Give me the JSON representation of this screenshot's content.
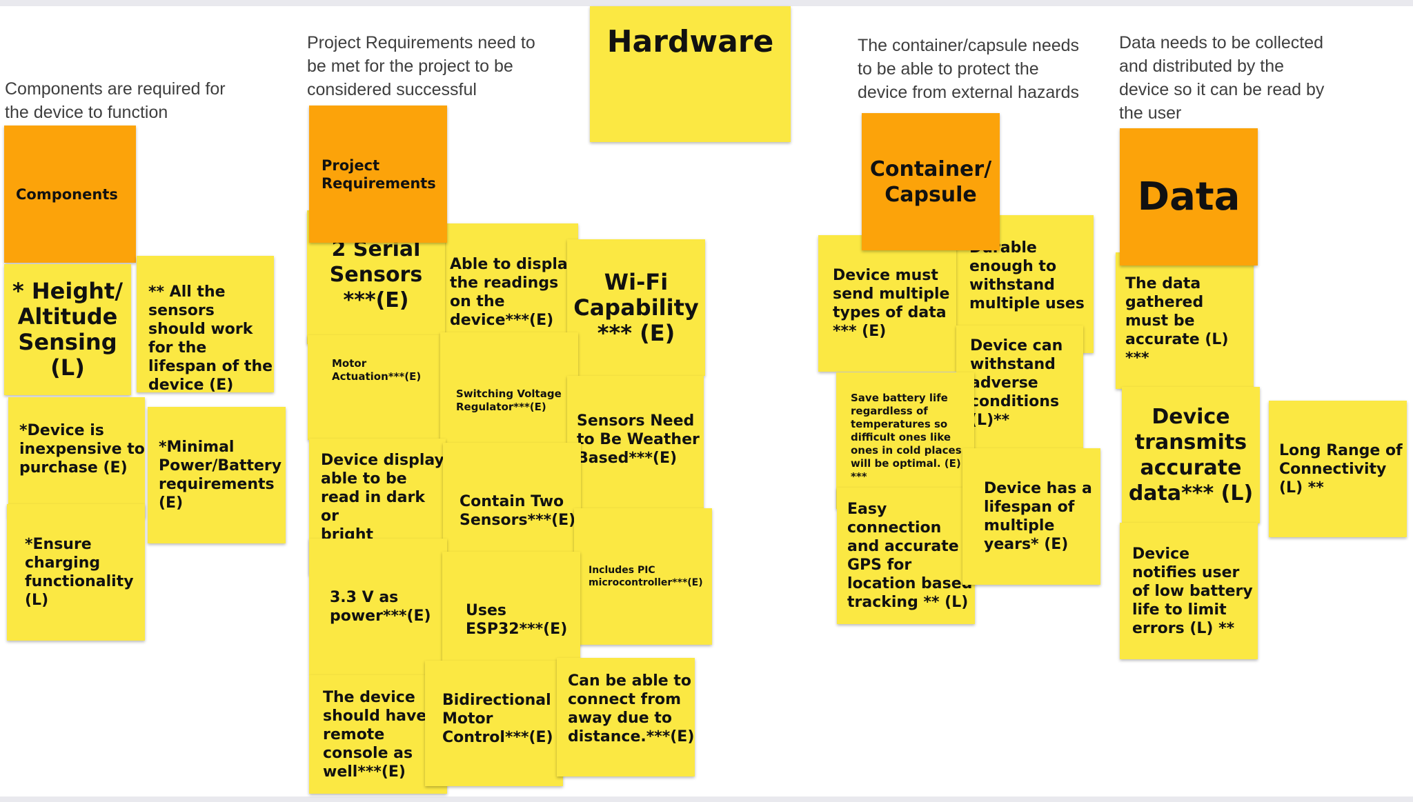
{
  "captions": {
    "components": "Components are required for\nthe device to function",
    "project_requirements": "Project Requirements need to\nbe met for the project to be\nconsidered successful",
    "container": "The container/capsule needs\nto be able to protect the\ndevice from external hazards",
    "data": "Data needs to be collected\nand distributed by the\ndevice so it can be read by\nthe user"
  },
  "headers": {
    "hardware": "Hardware",
    "components": "Components",
    "project_requirements": "Project\nRequirements",
    "container": "Container/\nCapsule",
    "data": "Data"
  },
  "components_notes": {
    "altitude": "* Height/\nAltitude\nSensing\n(L)",
    "lifespan": "** All the\nsensors\nshould work\nfor the\nlifespan of the\ndevice (E)",
    "inexpensive": "*Device is\ninexpensive to\npurchase (E)",
    "power": "*Minimal\nPower/Battery\nrequirements\n(E)",
    "charging": "*Ensure\ncharging\nfunctionality\n(L)"
  },
  "project_notes": {
    "serial_sensors": "2 Serial\nSensors\n***(E)",
    "display_readings": "Able to display\nthe readings\non the\ndevice***(E)",
    "wifi": "Wi-Fi\nCapability\n*** (E)",
    "motor_actuation": "Motor\nActuation***(E)",
    "switching_regulator": "Switching Voltage\nRegulator***(E)",
    "weather_sensors": "Sensors Need\nto Be Weather\nBased***(E)",
    "display_light": "Device display\nable to be\nread in dark or\nbright\nlight***(E)",
    "two_sensors": "Contain Two\nSensors***(E)",
    "pic": "Includes PIC\nmicrocontroller***(E)",
    "power_33v": "3.3 V as\npower***(E)",
    "esp32": "Uses\nESP32***(E)",
    "remote_console": "The device\nshould have\nremote\nconsole as\nwell***(E)",
    "bidirectional": "Bidirectional\nMotor\nControl***(E)",
    "connect_away": "Can be able to\nconnect from\naway due to\ndistance.***(E)"
  },
  "container_notes": {
    "durable": "Durable\nenough to\nwithstand\nmultiple uses",
    "multiple_data": "Device must\nsend multiple\ntypes of data\n*** (E)",
    "adverse": "Device can\nwithstand\nadverse\nconditions\n(L)**",
    "battery_life": "Save battery life\nregardless of\ntemperatures so\ndifficult ones like\nones in cold places\nwill be optimal. (E)\n***",
    "gps": "Easy\nconnection\nand accurate\nGPS for\nlocation based\ntracking ** (L)",
    "multi_year": "Device has a\nlifespan of\nmultiple\nyears* (E)"
  },
  "data_notes": {
    "accurate_gathered": "The data\ngathered\nmust be\naccurate (L) ***",
    "transmits": "Device\ntransmits\naccurate\ndata*** (L)",
    "long_range": "Long Range of\nConnectivity\n(L) **",
    "low_battery": "Device\nnotifies user\nof low battery\nlife to limit\nerrors (L) **"
  },
  "colors": {
    "sticky_yellow": "#fbe843",
    "sticky_orange": "#fca30a",
    "caption_text": "#3e3e3e",
    "note_text": "#111111",
    "frame_border": "#e9e9ee"
  }
}
